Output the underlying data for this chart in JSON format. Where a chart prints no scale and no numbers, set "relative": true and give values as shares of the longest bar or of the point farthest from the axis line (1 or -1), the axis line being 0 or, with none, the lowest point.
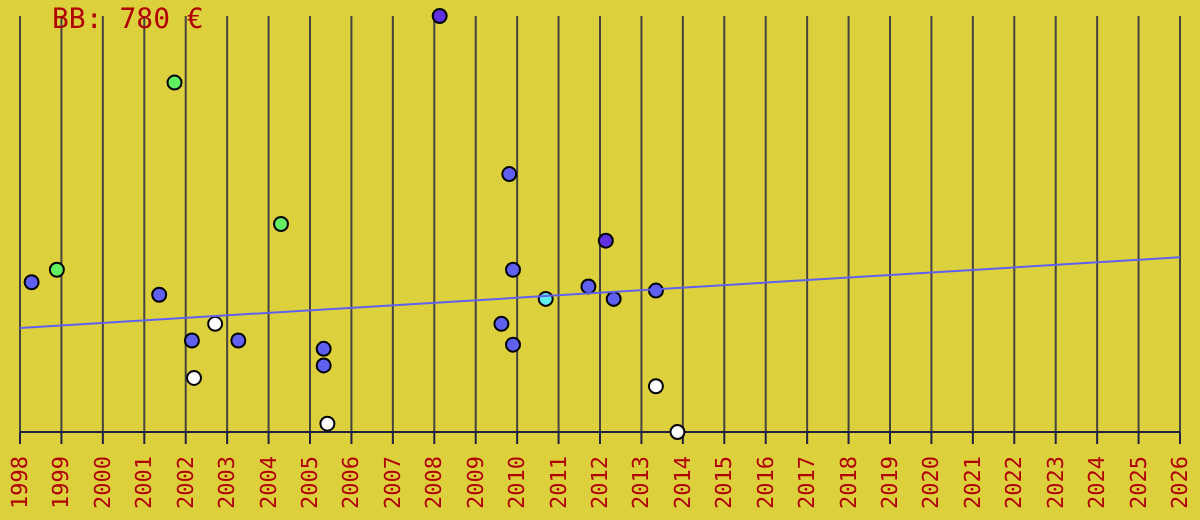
{
  "chart_data": {
    "type": "scatter",
    "title": "BB: 780 €",
    "relative": true,
    "marker": "circle",
    "grid": "x",
    "legend": false,
    "xlim": [
      1998,
      2026
    ],
    "xticks": [
      1998,
      1999,
      2000,
      2001,
      2002,
      2003,
      2004,
      2005,
      2006,
      2007,
      2008,
      2009,
      2010,
      2011,
      2012,
      2013,
      2014,
      2015,
      2016,
      2017,
      2018,
      2019,
      2020,
      2021,
      2022,
      2023,
      2024,
      2025,
      2026
    ],
    "series": [
      {
        "x": [
          1998.28,
          1998.89,
          2001.73,
          2001.36,
          2002.15,
          2002.71,
          2002.2,
          2003.27,
          2004.3,
          2005.33,
          2005.33,
          2005.42,
          2008.13,
          2009.81,
          2009.9,
          2009.62,
          2009.9,
          2010.69,
          2011.72,
          2012.14,
          2012.33,
          2013.35,
          2013.35,
          2013.87
        ],
        "values": [
          0.36,
          0.39,
          0.84,
          0.33,
          0.22,
          0.26,
          0.13,
          0.22,
          0.5,
          0.2,
          0.16,
          0.02,
          1,
          0.62,
          0.39,
          0.26,
          0.21,
          0.32,
          0.35,
          0.46,
          0.32,
          0.34,
          0.11,
          0
        ],
        "colors": [
          "#6060f0",
          "#60f060",
          "#60f060",
          "#6060f0",
          "#6060f0",
          "#ffffff",
          "#ffffff",
          "#6060f0",
          "#60f060",
          "#6060f0",
          "#6060f0",
          "#ffffff",
          "#6030e0",
          "#6060f0",
          "#6060f0",
          "#6060f0",
          "#6060f0",
          "#60f0f0",
          "#6060f0",
          "#6030e0",
          "#6060f0",
          "#6060f0",
          "#ffffff",
          "#ffffff"
        ]
      },
      {
        "type": "line",
        "marker": "none",
        "color": "#6060f0",
        "x": [
          1998,
          2026
        ],
        "values": [
          0.25,
          0.42
        ]
      }
    ]
  }
}
